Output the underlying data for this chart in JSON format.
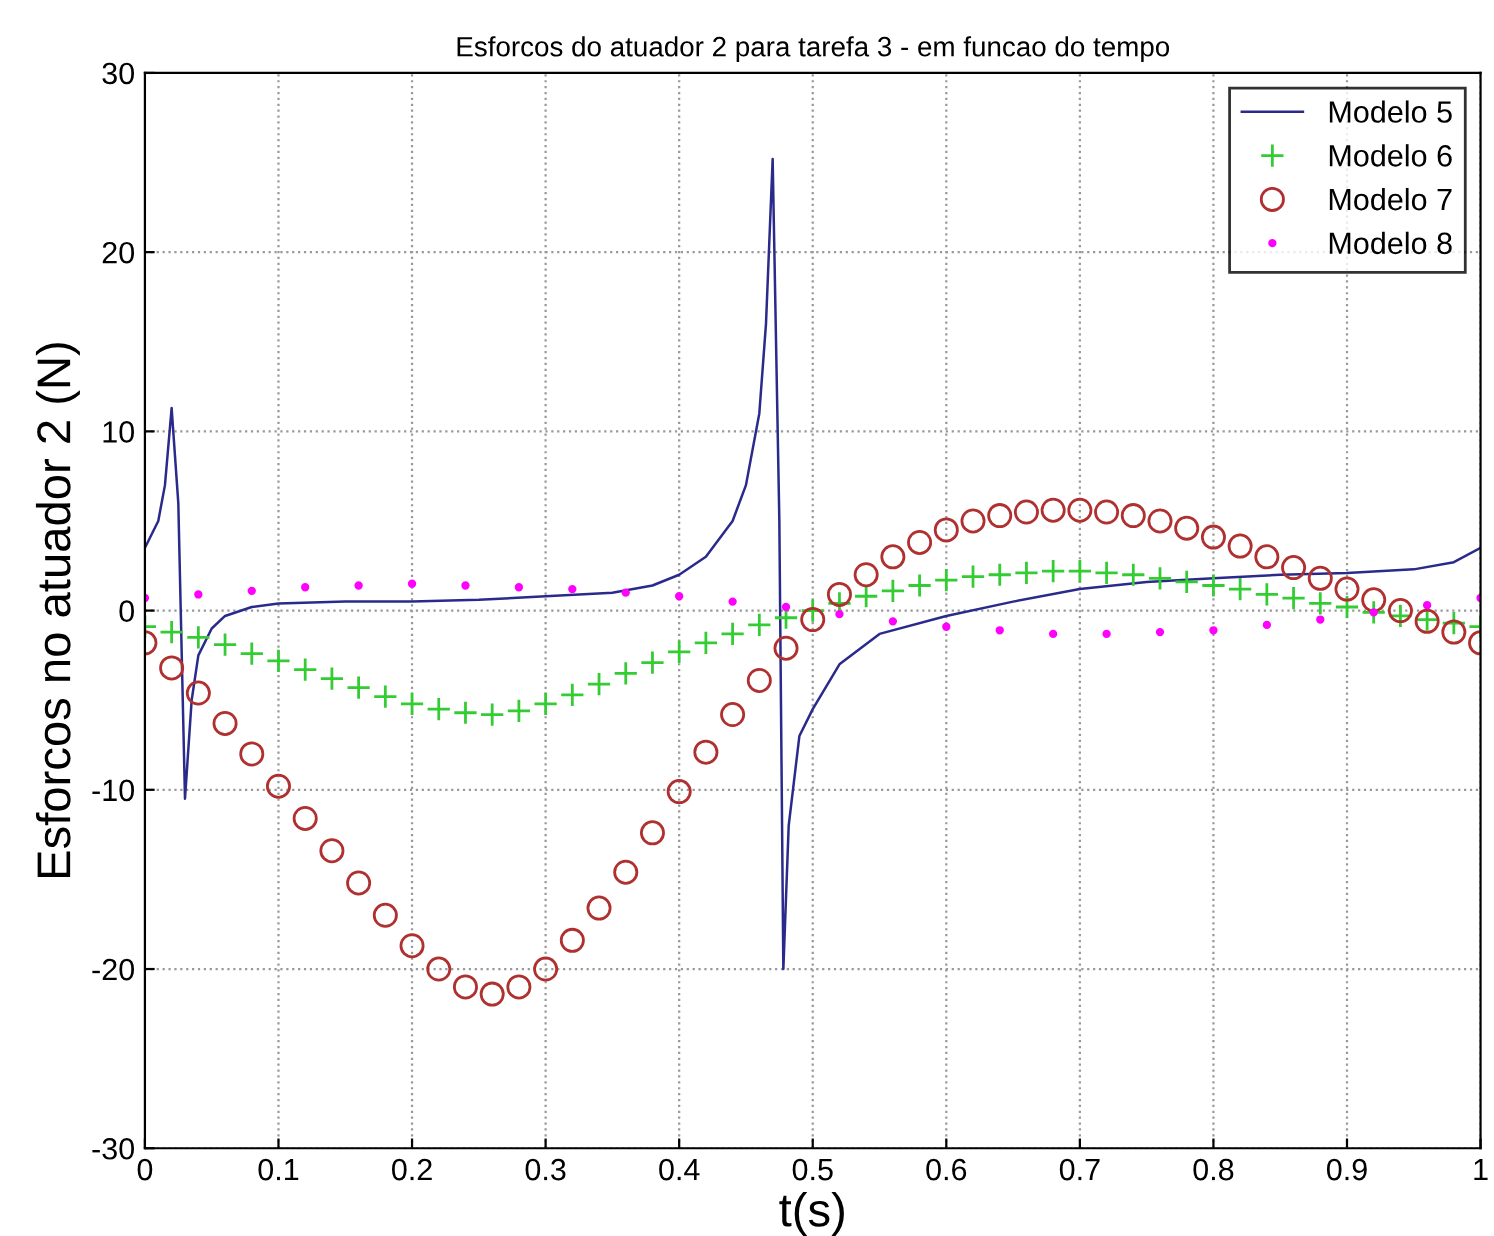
{
  "chart_data": {
    "type": "line",
    "title": "Esforcos do atuador 2 para tarefa 3 - em funcao do tempo",
    "xlabel": "t(s)",
    "ylabel": "Esforcos no atuador 2 (N)",
    "xlim": [
      0,
      1
    ],
    "xticks": [
      0,
      0.1,
      0.2,
      0.3,
      0.4,
      0.5,
      0.6,
      0.7,
      0.8,
      0.9,
      1
    ],
    "ylim": [
      -30,
      30
    ],
    "yticks": [
      -30,
      -20,
      -10,
      0,
      10,
      20,
      30
    ],
    "grid": true,
    "legend": "top right",
    "series": [
      {
        "name": "Modelo 5",
        "color": "#2a2a8c",
        "marker": "none",
        "x": [
          0,
          0.01,
          0.015,
          0.02,
          0.025,
          0.03,
          0.035,
          0.04,
          0.05,
          0.06,
          0.08,
          0.1,
          0.15,
          0.2,
          0.25,
          0.3,
          0.35,
          0.38,
          0.4,
          0.42,
          0.44,
          0.45,
          0.46,
          0.465,
          0.47,
          0.475,
          0.478,
          0.482,
          0.49,
          0.5,
          0.52,
          0.55,
          0.6,
          0.65,
          0.7,
          0.75,
          0.8,
          0.85,
          0.9,
          0.95,
          0.98,
          1.0
        ],
        "values": [
          3.5,
          5,
          7,
          11.3,
          6,
          -10.5,
          -5,
          -2.5,
          -1,
          -0.3,
          0.2,
          0.4,
          0.5,
          0.5,
          0.6,
          0.8,
          1.0,
          1.4,
          2.0,
          3.0,
          5.0,
          7.0,
          11,
          16,
          25.2,
          5,
          -20,
          -12,
          -7,
          -5.5,
          -3,
          -1.3,
          -0.3,
          0.5,
          1.2,
          1.6,
          1.8,
          2.0,
          2.1,
          2.3,
          2.7,
          3.5
        ]
      },
      {
        "name": "Modelo 6",
        "color": "#33cc33",
        "type": "scatter",
        "marker": "cross",
        "x": [
          0,
          0.02,
          0.04,
          0.06,
          0.08,
          0.1,
          0.12,
          0.14,
          0.16,
          0.18,
          0.2,
          0.22,
          0.24,
          0.26,
          0.28,
          0.3,
          0.32,
          0.34,
          0.36,
          0.38,
          0.4,
          0.42,
          0.44,
          0.46,
          0.48,
          0.5,
          0.52,
          0.54,
          0.56,
          0.58,
          0.6,
          0.62,
          0.64,
          0.66,
          0.68,
          0.7,
          0.72,
          0.74,
          0.76,
          0.78,
          0.8,
          0.82,
          0.84,
          0.86,
          0.88,
          0.9,
          0.92,
          0.94,
          0.96,
          0.98,
          1.0
        ],
        "values": [
          -0.9,
          -1.2,
          -1.5,
          -1.9,
          -2.4,
          -2.8,
          -3.3,
          -3.8,
          -4.3,
          -4.8,
          -5.2,
          -5.5,
          -5.7,
          -5.8,
          -5.6,
          -5.2,
          -4.7,
          -4.1,
          -3.5,
          -2.9,
          -2.3,
          -1.8,
          -1.3,
          -0.8,
          -0.4,
          0.0,
          0.4,
          0.8,
          1.1,
          1.4,
          1.7,
          1.9,
          2.0,
          2.1,
          2.2,
          2.2,
          2.1,
          2.0,
          1.8,
          1.6,
          1.4,
          1.2,
          0.9,
          0.7,
          0.4,
          0.2,
          -0.1,
          -0.3,
          -0.5,
          -0.7,
          -0.9
        ]
      },
      {
        "name": "Modelo 7",
        "color": "#b03030",
        "type": "scatter",
        "marker": "circle",
        "x": [
          0,
          0.02,
          0.04,
          0.06,
          0.08,
          0.1,
          0.12,
          0.14,
          0.16,
          0.18,
          0.2,
          0.22,
          0.24,
          0.26,
          0.28,
          0.3,
          0.32,
          0.34,
          0.36,
          0.38,
          0.4,
          0.42,
          0.44,
          0.46,
          0.48,
          0.5,
          0.52,
          0.54,
          0.56,
          0.58,
          0.6,
          0.62,
          0.64,
          0.66,
          0.68,
          0.7,
          0.72,
          0.74,
          0.76,
          0.78,
          0.8,
          0.82,
          0.84,
          0.86,
          0.88,
          0.9,
          0.92,
          0.94,
          0.96,
          0.98,
          1.0
        ],
        "values": [
          -1.8,
          -3.2,
          -4.6,
          -6.3,
          -8.0,
          -9.8,
          -11.6,
          -13.4,
          -15.2,
          -17.0,
          -18.7,
          -20.0,
          -21.0,
          -21.4,
          -21.0,
          -20.0,
          -18.4,
          -16.6,
          -14.6,
          -12.4,
          -10.1,
          -7.9,
          -5.8,
          -3.9,
          -2.1,
          -0.5,
          0.9,
          2.0,
          3.0,
          3.8,
          4.5,
          5.0,
          5.3,
          5.5,
          5.6,
          5.6,
          5.5,
          5.3,
          5.0,
          4.6,
          4.1,
          3.6,
          3.0,
          2.4,
          1.8,
          1.2,
          0.6,
          0.0,
          -0.6,
          -1.2,
          -1.8
        ]
      },
      {
        "name": "Modelo 8",
        "color": "#ff00ff",
        "type": "scatter",
        "marker": "dot",
        "x": [
          0,
          0.04,
          0.08,
          0.12,
          0.16,
          0.2,
          0.24,
          0.28,
          0.32,
          0.36,
          0.4,
          0.44,
          0.48,
          0.52,
          0.56,
          0.6,
          0.64,
          0.68,
          0.72,
          0.76,
          0.8,
          0.84,
          0.88,
          0.92,
          0.96,
          1.0
        ],
        "values": [
          0.7,
          0.9,
          1.1,
          1.3,
          1.4,
          1.5,
          1.4,
          1.3,
          1.2,
          1.0,
          0.8,
          0.5,
          0.2,
          -0.2,
          -0.6,
          -0.9,
          -1.1,
          -1.3,
          -1.3,
          -1.2,
          -1.1,
          -0.8,
          -0.5,
          -0.1,
          0.3,
          0.7
        ]
      }
    ]
  }
}
